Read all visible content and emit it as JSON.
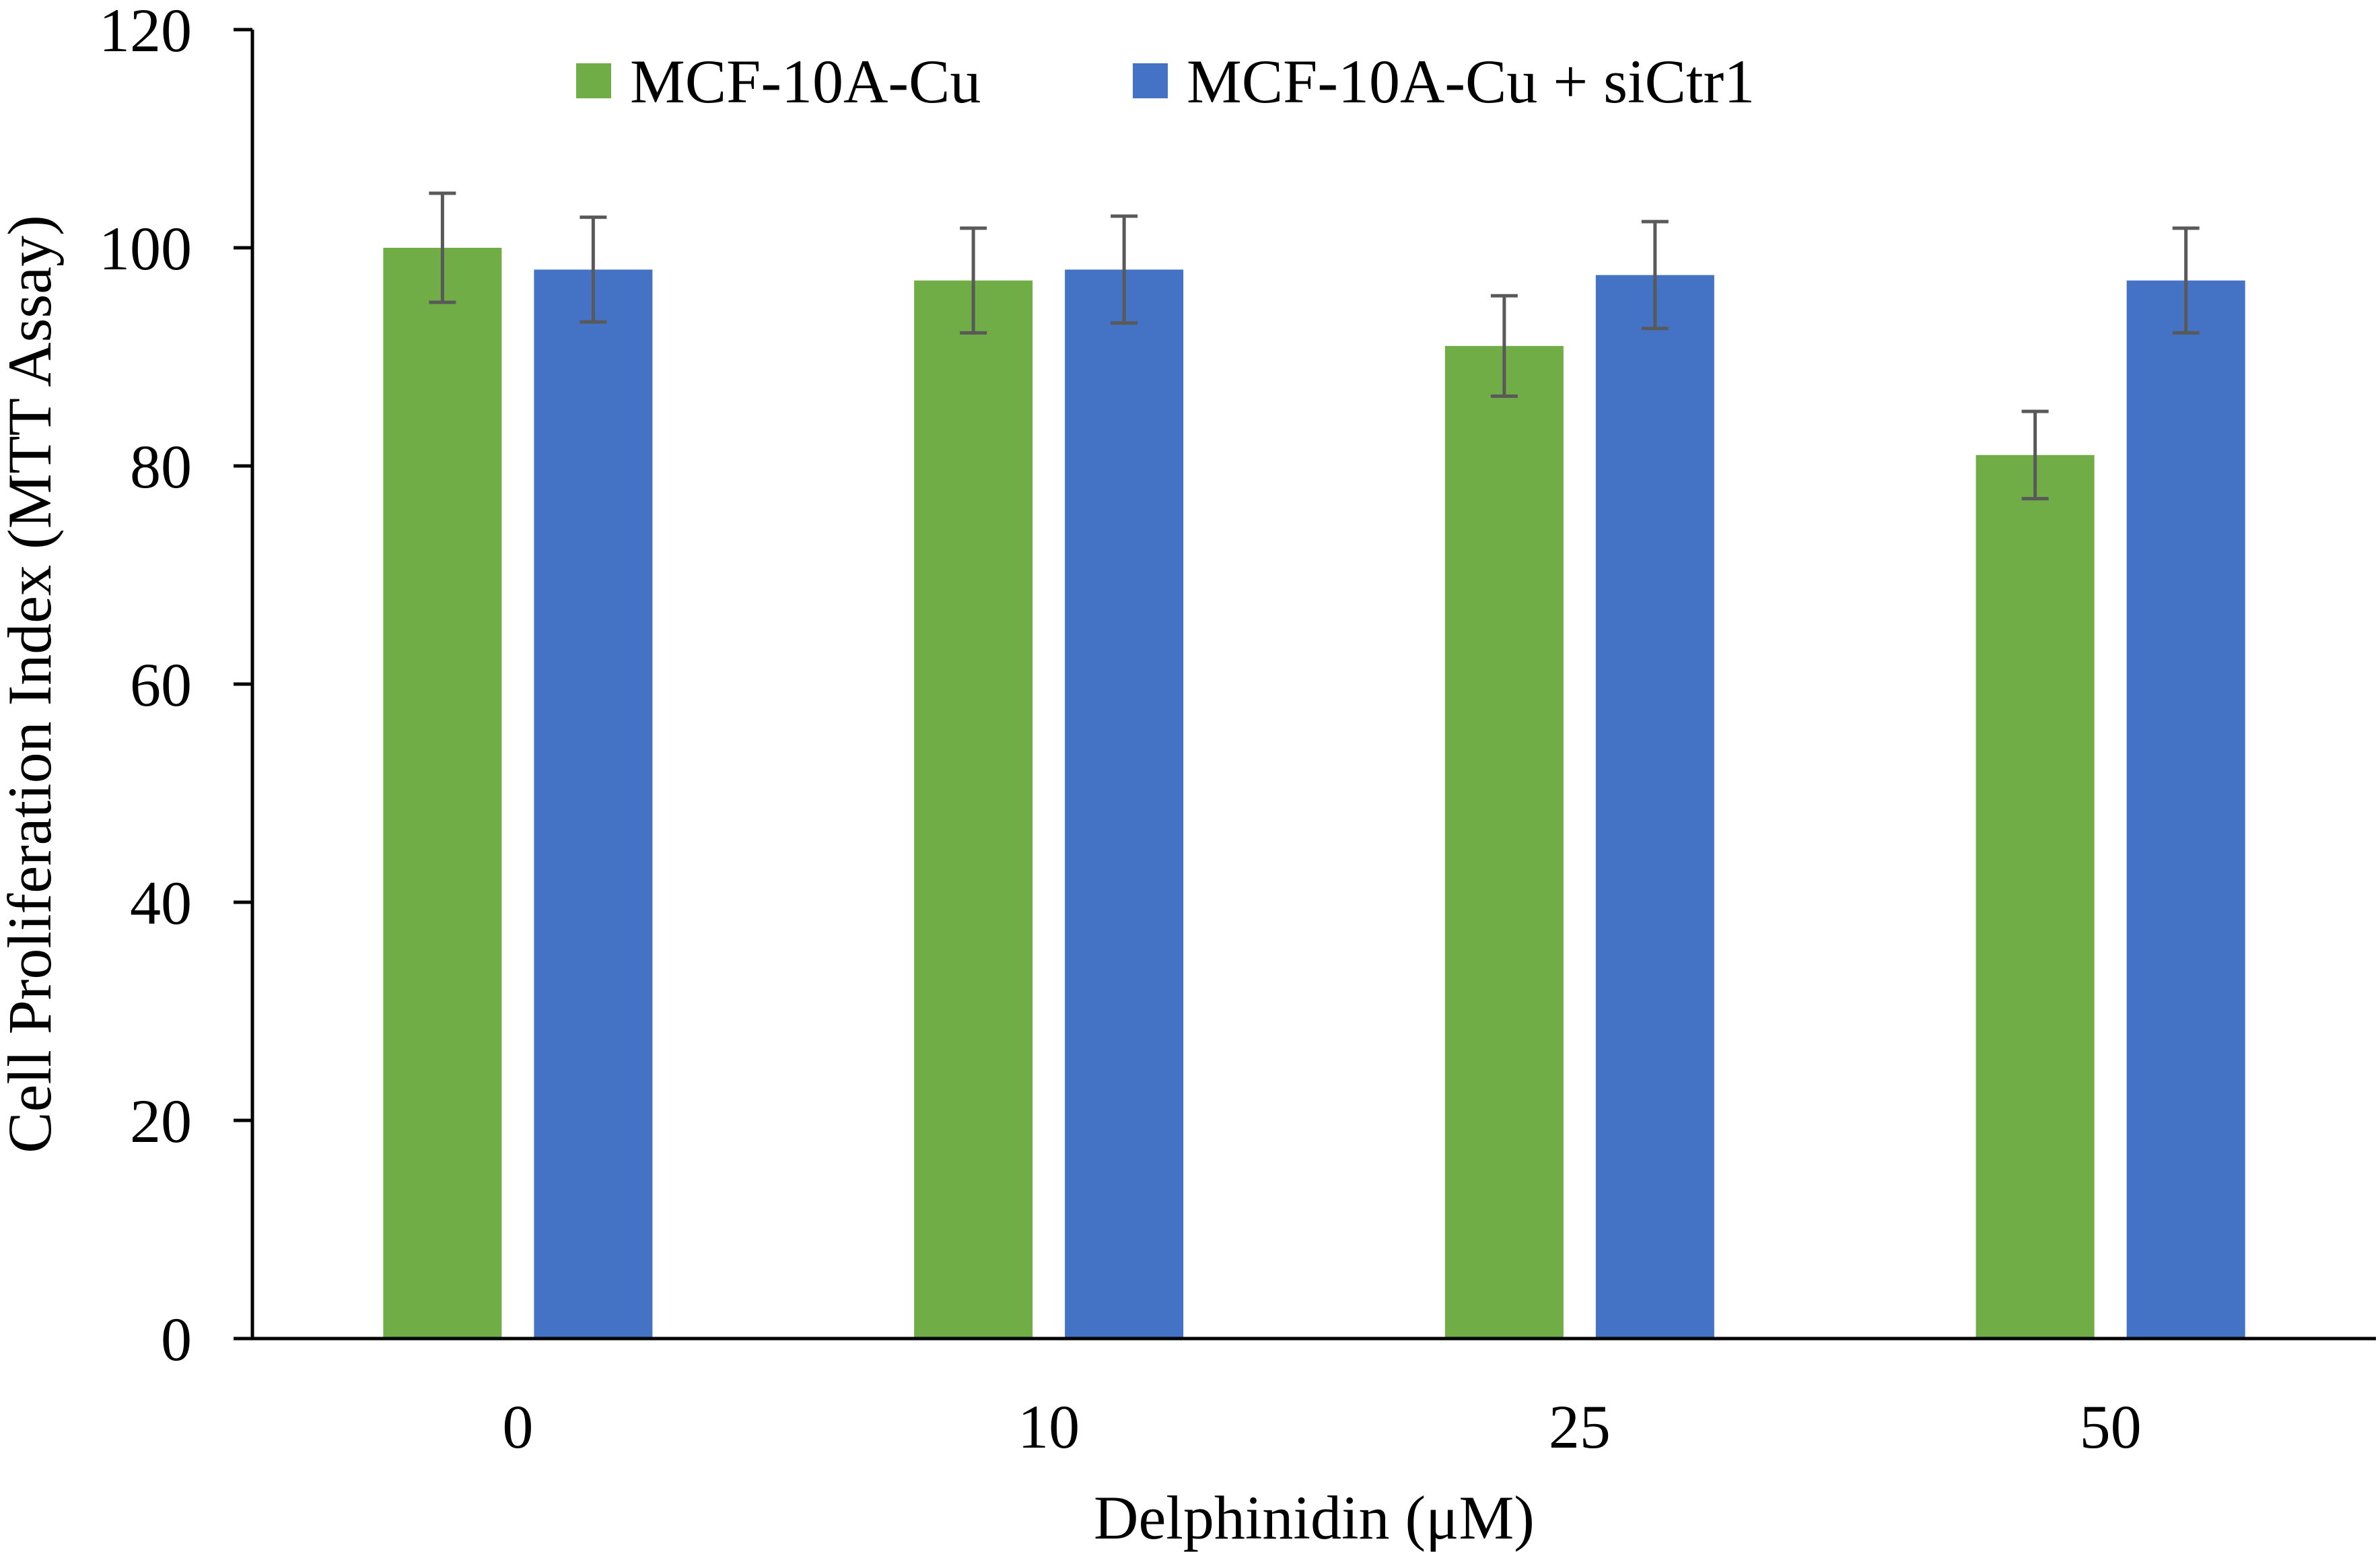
{
  "chart_data": {
    "type": "bar",
    "title": "",
    "xlabel": "Delphinidin (μM)",
    "ylabel": "Cell Proliferation Index (MTT Assay)",
    "categories": [
      "0",
      "10",
      "25",
      "50"
    ],
    "ylim": [
      0,
      120
    ],
    "yticks": [
      0,
      20,
      40,
      60,
      80,
      100,
      120
    ],
    "grid": false,
    "legend_position": "top-center",
    "series": [
      {
        "name": "MCF-10A-Cu",
        "color": "#70AD47",
        "values": [
          100,
          97,
          91,
          81
        ],
        "errors": [
          5,
          4.8,
          4.6,
          4
        ]
      },
      {
        "name": "MCF-10A-Cu + siCtr1",
        "color": "#4472C4",
        "values": [
          98,
          98,
          97.5,
          97
        ],
        "errors": [
          4.8,
          4.9,
          4.9,
          4.8
        ]
      }
    ],
    "error_bar_color": "#595959",
    "axis_color": "#000000"
  }
}
